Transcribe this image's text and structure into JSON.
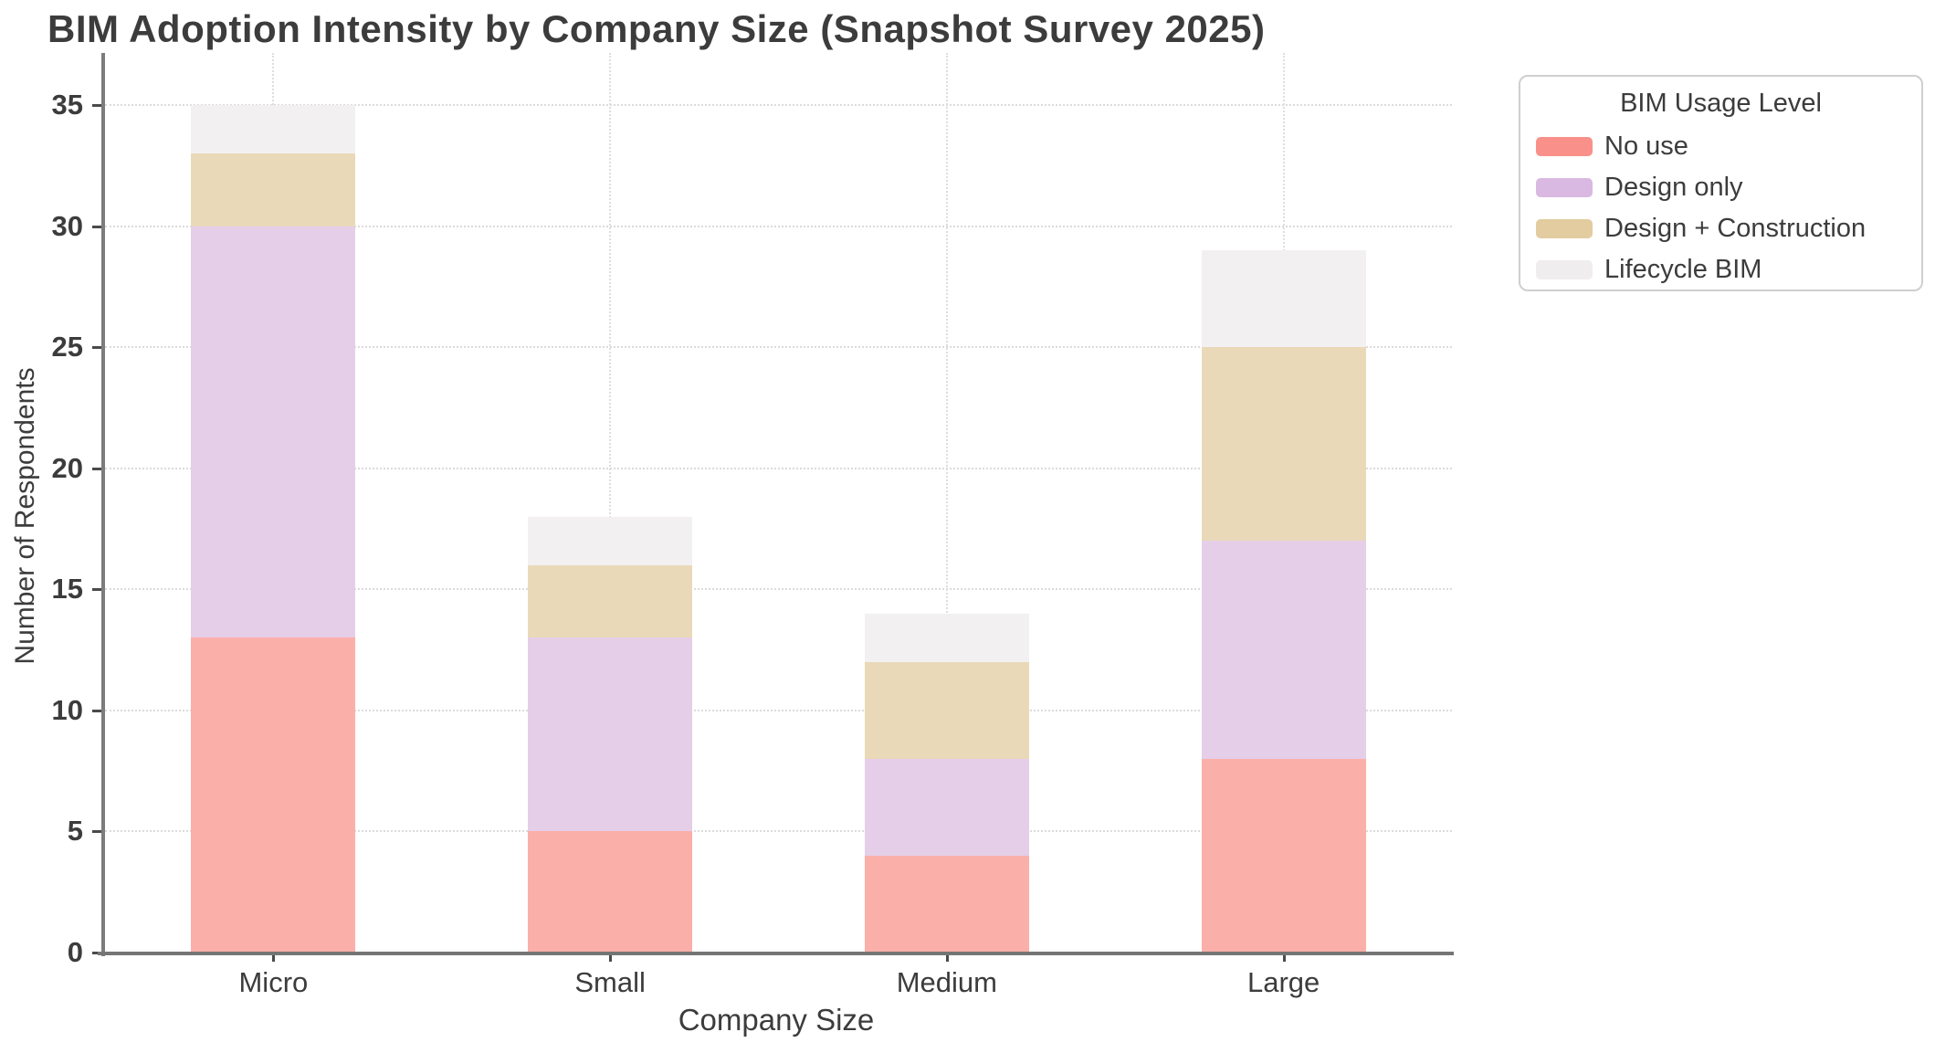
{
  "chart_data": {
    "type": "bar",
    "stacked": true,
    "title": "BIM Adoption Intensity by Company Size (Snapshot Survey 2025)",
    "xlabel": "Company Size",
    "ylabel": "Number of Respondents",
    "categories": [
      "Micro",
      "Small",
      "Medium",
      "Large"
    ],
    "series": [
      {
        "name": "No use",
        "values": [
          13,
          5,
          4,
          8
        ],
        "color": "#F9918A",
        "bar_color": "#FBAFA9"
      },
      {
        "name": "Design only",
        "values": [
          17,
          8,
          4,
          9
        ],
        "color": "#D9B9E2",
        "bar_color": "#E5CEE8"
      },
      {
        "name": "Design + Construction",
        "values": [
          3,
          3,
          4,
          8
        ],
        "color": "#E2CCA0",
        "bar_color": "#EAD9B8"
      },
      {
        "name": "Lifecycle BIM",
        "values": [
          2,
          2,
          2,
          4
        ],
        "color": "#EFEDED",
        "bar_color": "#F2F0F1"
      }
    ],
    "yticks": [
      0,
      5,
      10,
      15,
      20,
      25,
      30,
      35
    ],
    "ylim": [
      0,
      37.2
    ],
    "grid": true,
    "legend": {
      "title": "BIM Usage Level",
      "position": "upper right"
    },
    "text_color": "#3c3c3c",
    "gridline_color": "#dbdbdb",
    "spine_color": "#7c7c7c"
  }
}
